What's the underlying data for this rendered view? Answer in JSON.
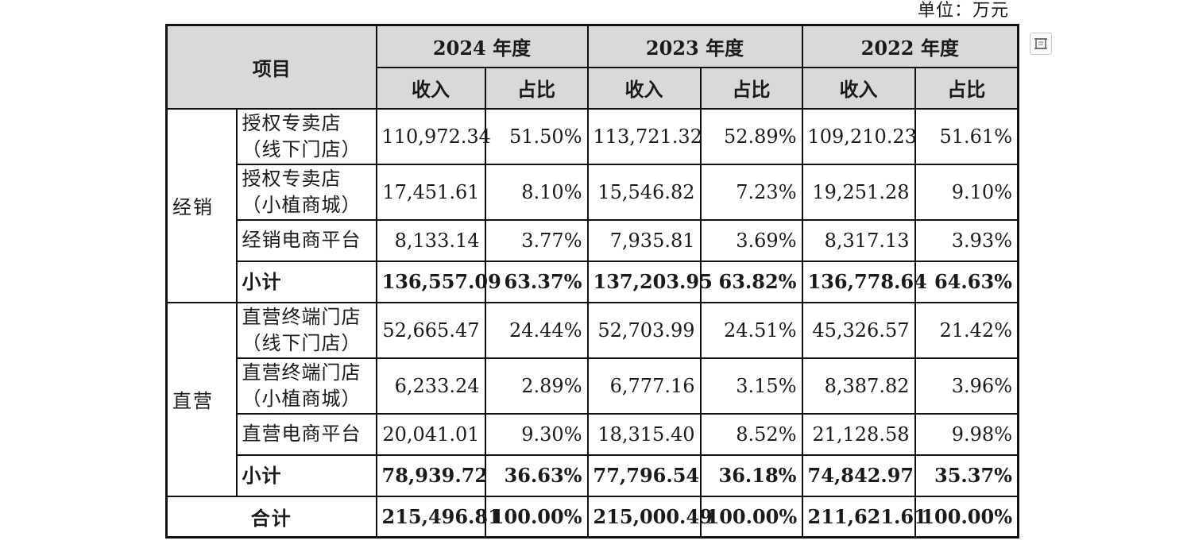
{
  "unit_label": "单位：万元",
  "icon": "crop-icon",
  "header": {
    "item": "项目",
    "years": [
      "2024 年度",
      "2023 年度",
      "2022 年度"
    ],
    "revenue": "收入",
    "share": "占比"
  },
  "groups": [
    {
      "name": "经销",
      "rows": [
        {
          "line1": "授权专卖店",
          "line2": "（线下门店）",
          "cells": [
            "110,972.34",
            "51.50%",
            "113,721.32",
            "52.89%",
            "109,210.23",
            "51.61%"
          ]
        },
        {
          "line1": "授权专卖店",
          "line2": "（小植商城）",
          "cells": [
            "17,451.61",
            "8.10%",
            "15,546.82",
            "7.23%",
            "19,251.28",
            "9.10%"
          ]
        },
        {
          "line1": "经销电商平台",
          "line2": "",
          "cells": [
            "8,133.14",
            "3.77%",
            "7,935.81",
            "3.69%",
            "8,317.13",
            "3.93%"
          ]
        }
      ],
      "subtotal": {
        "label": "小计",
        "cells": [
          "136,557.09",
          "63.37%",
          "137,203.95",
          "63.82%",
          "136,778.64",
          "64.63%"
        ]
      }
    },
    {
      "name": "直营",
      "rows": [
        {
          "line1": "直营终端门店",
          "line2": "（线下门店）",
          "cells": [
            "52,665.47",
            "24.44%",
            "52,703.99",
            "24.51%",
            "45,326.57",
            "21.42%"
          ]
        },
        {
          "line1": "直营终端门店",
          "line2": "（小植商城）",
          "cells": [
            "6,233.24",
            "2.89%",
            "6,777.16",
            "3.15%",
            "8,387.82",
            "3.96%"
          ]
        },
        {
          "line1": "直营电商平台",
          "line2": "",
          "cells": [
            "20,041.01",
            "9.30%",
            "18,315.40",
            "8.52%",
            "21,128.58",
            "9.98%"
          ]
        }
      ],
      "subtotal": {
        "label": "小计",
        "cells": [
          "78,939.72",
          "36.63%",
          "77,796.54",
          "36.18%",
          "74,842.97",
          "35.37%"
        ]
      }
    }
  ],
  "total": {
    "label": "合计",
    "cells": [
      "215,496.81",
      "100.00%",
      "215,000.49",
      "100.00%",
      "211,621.61",
      "100.00%"
    ]
  }
}
